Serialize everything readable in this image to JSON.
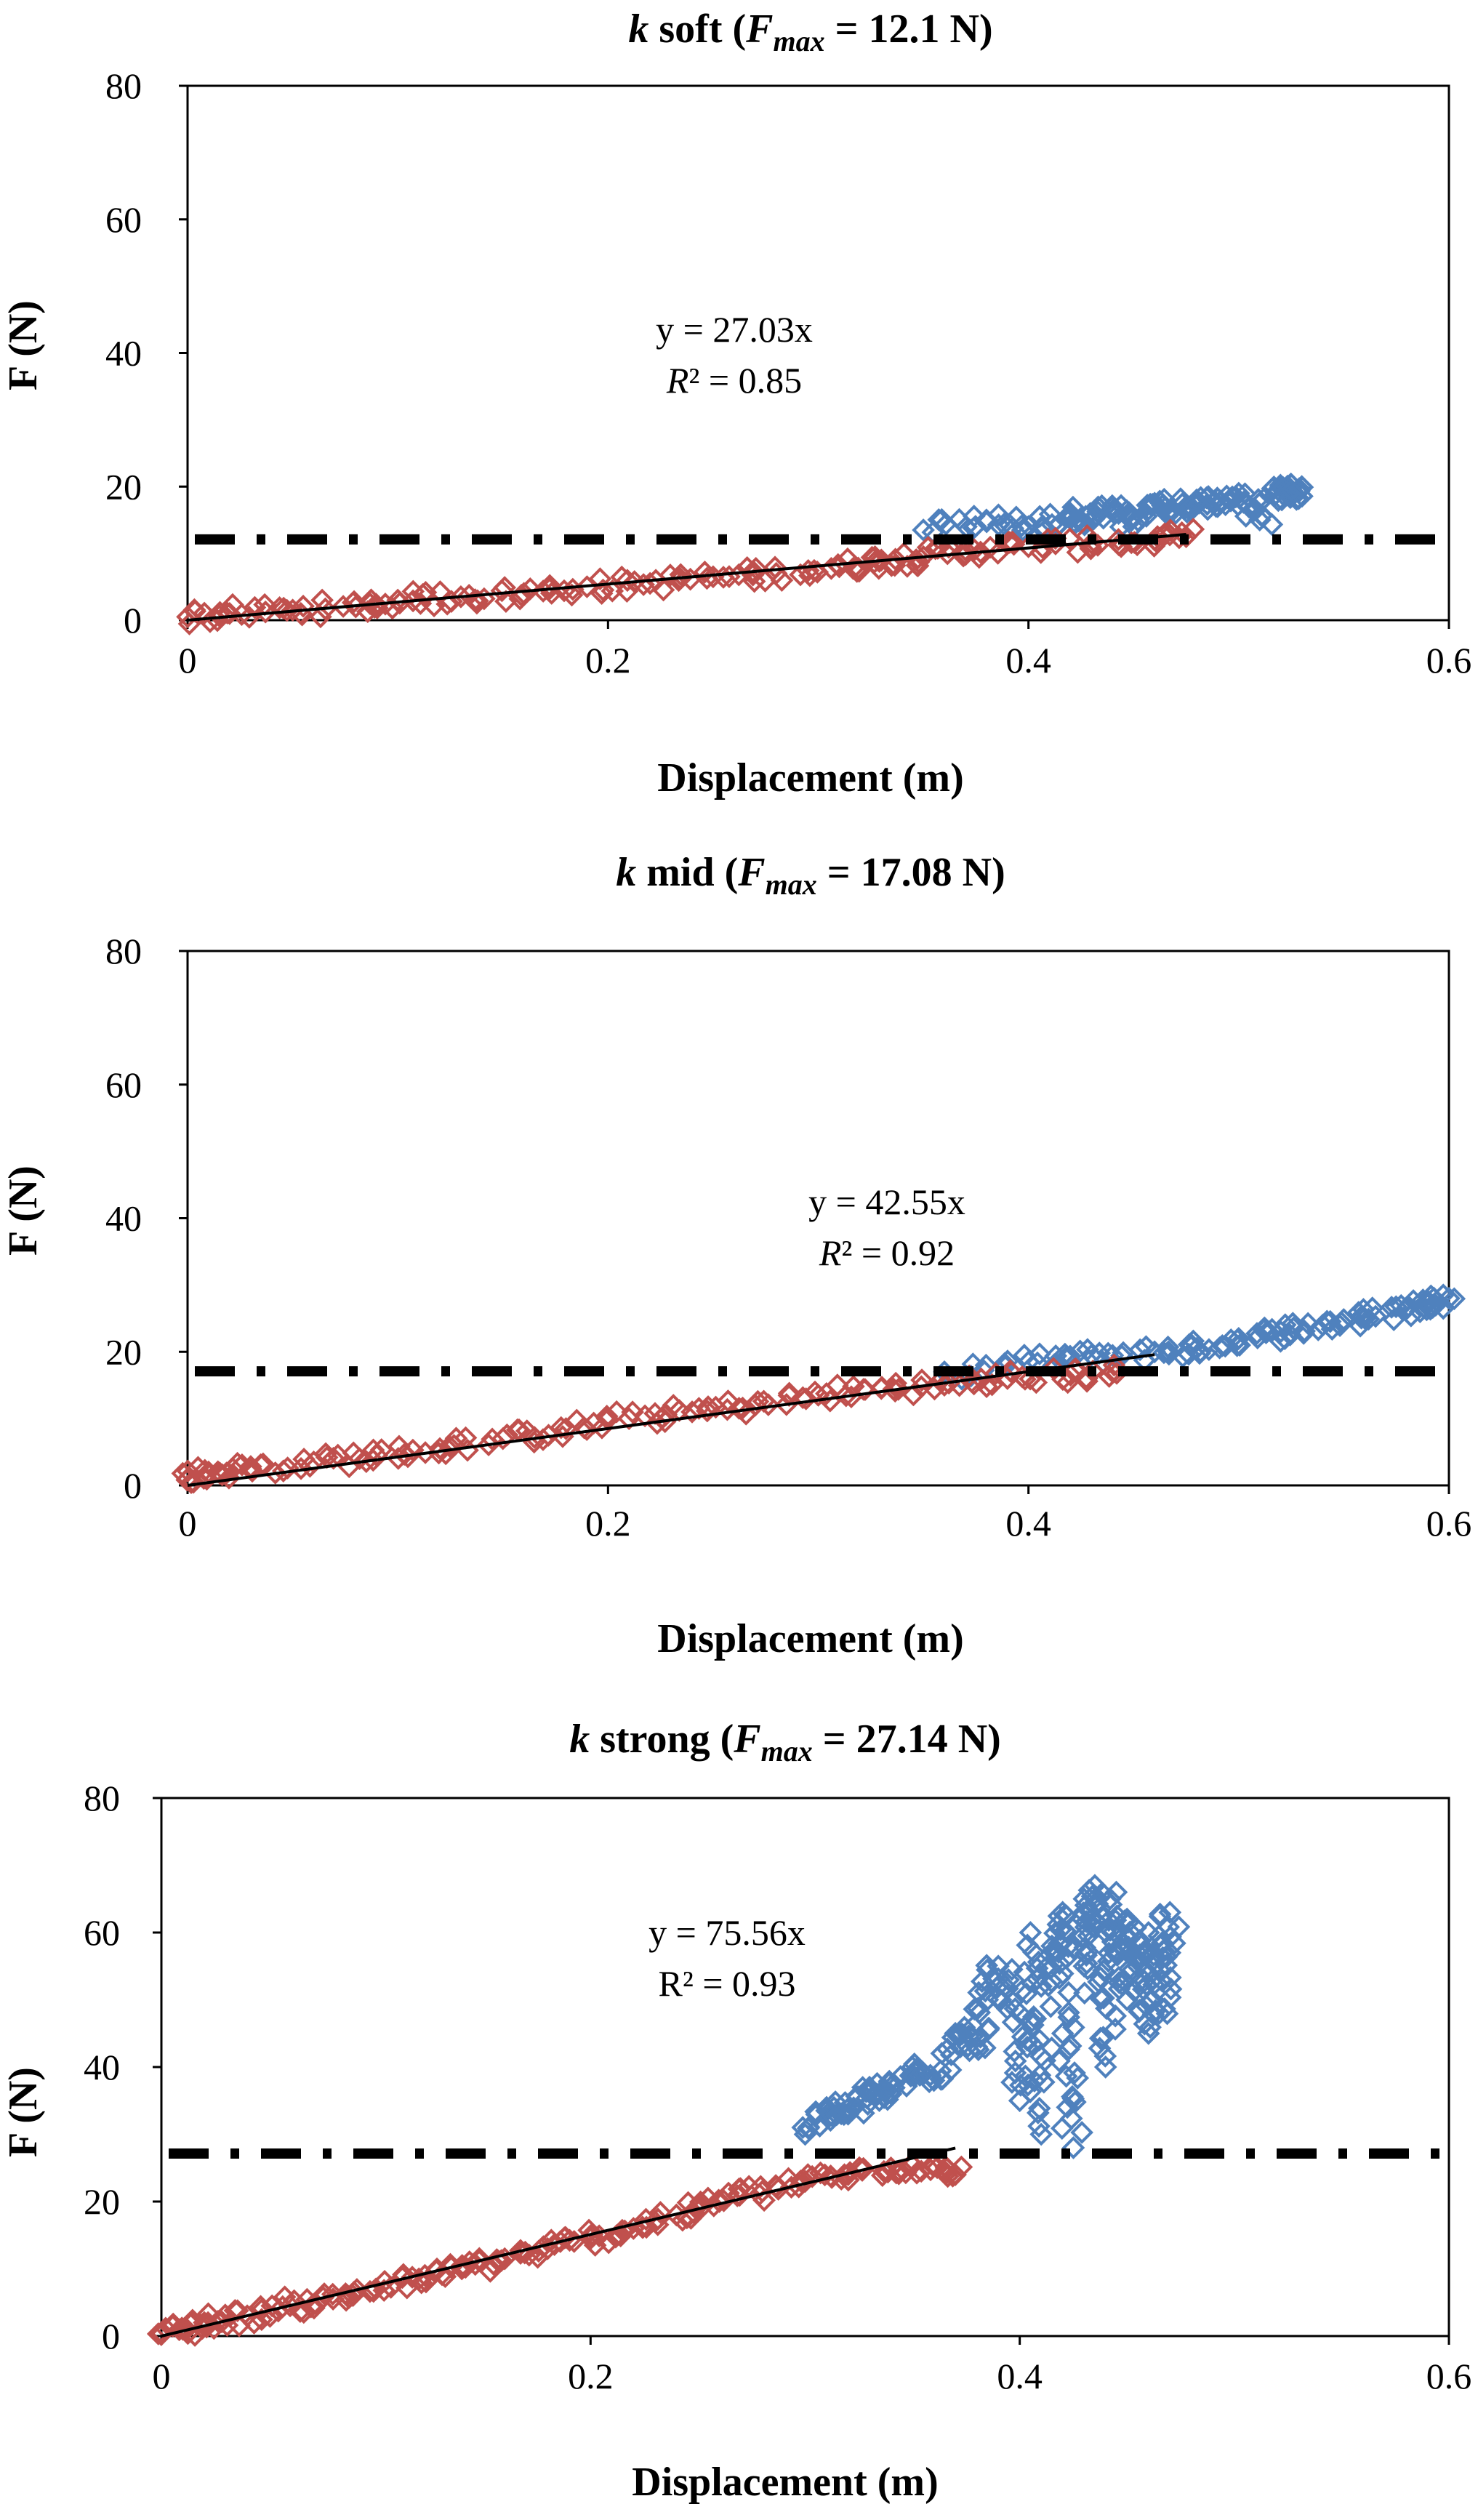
{
  "chart_data": [
    {
      "type": "scatter",
      "title": {
        "k": "k",
        "name": " soft (",
        "F": "F",
        "sub": "max",
        "value": " = 12.1 N)"
      },
      "xlabel": "Displacement (m)",
      "ylabel": "F (N)",
      "xlim": [
        0,
        0.6
      ],
      "ylim": [
        0,
        80
      ],
      "xticks": [
        "0",
        "0.2",
        "0.4",
        "0.6"
      ],
      "yticks": [
        "0",
        "20",
        "40",
        "60",
        "80"
      ],
      "grid": false,
      "fmax": 12.1,
      "fit": {
        "slope": 27.03,
        "x_end": 0.475,
        "equation": "y = 27.03x",
        "r2_prefix": "R",
        "r2_value": "² = 0.85",
        "r2_italic": true
      },
      "series": [
        {
          "name": "blue",
          "color": "#4f81bd",
          "points": [
            [
              0.35,
              13.5
            ],
            [
              0.38,
              15
            ],
            [
              0.4,
              14
            ],
            [
              0.42,
              16
            ],
            [
              0.43,
              15
            ],
            [
              0.44,
              17
            ],
            [
              0.45,
              14
            ],
            [
              0.46,
              17.5
            ],
            [
              0.47,
              16
            ],
            [
              0.48,
              18
            ],
            [
              0.49,
              17
            ],
            [
              0.5,
              19
            ],
            [
              0.51,
              15
            ],
            [
              0.52,
              20
            ],
            [
              0.525,
              18.5
            ],
            [
              0.53,
              20
            ]
          ]
        },
        {
          "name": "red",
          "color": "#c0504d",
          "points": [
            [
              0,
              0.5
            ],
            [
              0.02,
              1
            ],
            [
              0.05,
              1.5
            ],
            [
              0.08,
              2
            ],
            [
              0.1,
              3
            ],
            [
              0.13,
              3.5
            ],
            [
              0.16,
              4
            ],
            [
              0.19,
              5
            ],
            [
              0.22,
              5.5
            ],
            [
              0.25,
              6.5
            ],
            [
              0.28,
              7
            ],
            [
              0.31,
              8
            ],
            [
              0.33,
              9
            ],
            [
              0.35,
              9.5
            ],
            [
              0.37,
              10.5
            ],
            [
              0.4,
              11
            ],
            [
              0.43,
              11.5
            ],
            [
              0.46,
              12
            ],
            [
              0.475,
              12.5
            ]
          ]
        }
      ]
    },
    {
      "type": "scatter",
      "title": {
        "k": "k",
        "name": " mid (",
        "F": "F",
        "sub": "max",
        "value": " = 17.08 N)"
      },
      "xlabel": "Displacement (m)",
      "ylabel": "F (N)",
      "xlim": [
        0,
        0.6
      ],
      "ylim": [
        0,
        80
      ],
      "xticks": [
        "0",
        "0.2",
        "0.4",
        "0.6"
      ],
      "yticks": [
        "0",
        "20",
        "40",
        "60",
        "80"
      ],
      "grid": false,
      "fmax": 17.08,
      "fit": {
        "slope": 42.55,
        "x_end": 0.46,
        "equation": "y = 42.55x",
        "r2_prefix": "R",
        "r2_value": "² = 0.92",
        "r2_italic": true
      },
      "series": [
        {
          "name": "blue",
          "color": "#4f81bd",
          "points": [
            [
              0.36,
              17
            ],
            [
              0.4,
              18.5
            ],
            [
              0.43,
              19.5
            ],
            [
              0.46,
              20
            ],
            [
              0.48,
              20.5
            ],
            [
              0.5,
              22
            ],
            [
              0.52,
              23
            ],
            [
              0.54,
              24
            ],
            [
              0.56,
              25
            ],
            [
              0.58,
              26.5
            ],
            [
              0.59,
              27.5
            ],
            [
              0.6,
              28
            ]
          ]
        },
        {
          "name": "red",
          "color": "#c0504d",
          "points": [
            [
              0,
              1
            ],
            [
              0.01,
              2
            ],
            [
              0.03,
              2.5
            ],
            [
              0.06,
              3.5
            ],
            [
              0.09,
              4.5
            ],
            [
              0.12,
              5.5
            ],
            [
              0.15,
              7
            ],
            [
              0.18,
              8.5
            ],
            [
              0.21,
              10
            ],
            [
              0.24,
              11
            ],
            [
              0.27,
              12
            ],
            [
              0.3,
              13.5
            ],
            [
              0.33,
              14.5
            ],
            [
              0.36,
              15
            ],
            [
              0.39,
              16
            ],
            [
              0.42,
              16.5
            ],
            [
              0.44,
              17
            ]
          ]
        }
      ]
    },
    {
      "type": "scatter",
      "title": {
        "k": "k",
        "name": " strong (",
        "F": "F",
        "sub": "max",
        "value": " = 27.14 N)"
      },
      "xlabel": "Displacement (m)",
      "ylabel": "F (N)",
      "xlim": [
        0,
        0.6
      ],
      "ylim": [
        0,
        80
      ],
      "xticks": [
        "0",
        "0.2",
        "0.4",
        "0.6"
      ],
      "yticks": [
        "0",
        "20",
        "40",
        "60",
        "80"
      ],
      "grid": false,
      "fmax": 27.14,
      "fit": {
        "slope": 75.56,
        "x_end": 0.37,
        "equation": "y = 75.56x",
        "r2_prefix": "R",
        "r2_value": "² = 0.93",
        "r2_italic": false
      },
      "series": [
        {
          "name": "blue",
          "color": "#4f81bd",
          "points": [
            [
              0.3,
              30
            ],
            [
              0.31,
              34
            ],
            [
              0.32,
              33
            ],
            [
              0.33,
              37
            ],
            [
              0.34,
              36
            ],
            [
              0.35,
              40
            ],
            [
              0.36,
              38
            ],
            [
              0.37,
              45
            ],
            [
              0.38,
              43
            ],
            [
              0.385,
              50
            ],
            [
              0.39,
              55
            ],
            [
              0.4,
              48
            ],
            [
              0.4,
              35
            ],
            [
              0.405,
              60
            ],
            [
              0.41,
              30
            ],
            [
              0.41,
              52
            ],
            [
              0.415,
              58
            ],
            [
              0.42,
              63
            ],
            [
              0.42,
              45
            ],
            [
              0.425,
              28
            ],
            [
              0.43,
              65
            ],
            [
              0.43,
              55
            ],
            [
              0.435,
              67
            ],
            [
              0.44,
              60
            ],
            [
              0.44,
              40
            ],
            [
              0.445,
              66
            ],
            [
              0.45,
              50
            ],
            [
              0.45,
              62
            ],
            [
              0.455,
              55
            ],
            [
              0.46,
              45
            ],
            [
              0.46,
              60
            ],
            [
              0.465,
              48
            ],
            [
              0.47,
              57
            ],
            [
              0.47,
              63
            ]
          ]
        },
        {
          "name": "red",
          "color": "#c0504d",
          "points": [
            [
              0,
              0.5
            ],
            [
              0.01,
              1
            ],
            [
              0.02,
              2
            ],
            [
              0.04,
              3
            ],
            [
              0.06,
              4.5
            ],
            [
              0.08,
              5.5
            ],
            [
              0.1,
              7
            ],
            [
              0.12,
              8.5
            ],
            [
              0.14,
              10
            ],
            [
              0.16,
              11.5
            ],
            [
              0.18,
              13
            ],
            [
              0.2,
              14.5
            ],
            [
              0.22,
              16
            ],
            [
              0.24,
              18
            ],
            [
              0.26,
              20
            ],
            [
              0.28,
              21.5
            ],
            [
              0.3,
              23
            ],
            [
              0.32,
              24
            ],
            [
              0.34,
              25
            ],
            [
              0.36,
              25.5
            ],
            [
              0.37,
              24
            ]
          ]
        }
      ]
    }
  ]
}
